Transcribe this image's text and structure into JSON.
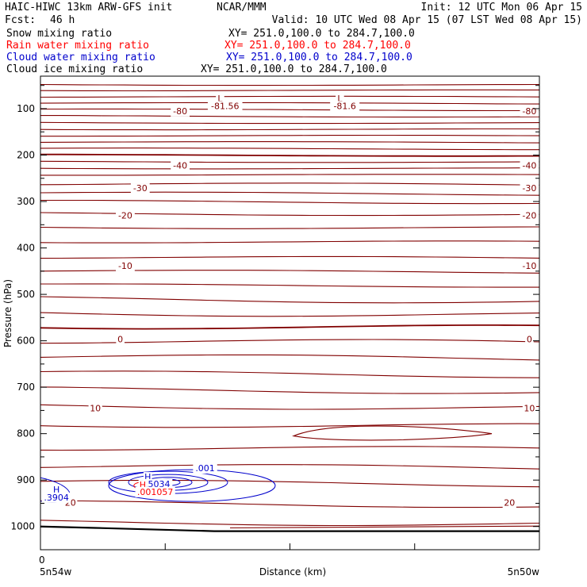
{
  "header": {
    "model": "HAIC-HIWC 13km ARW-GFS init",
    "org": "NCAR/MMM",
    "init": "Init: 12 UTC Mon 06 Apr 15",
    "fcst_label": "Fcst:",
    "fcst_value": "46 h",
    "valid": "Valid: 10 UTC Wed 08 Apr 15 (07 LST Wed 08 Apr 15)"
  },
  "fields": [
    {
      "name": "Snow mixing ratio",
      "xy": "XY= 251.0,100.0 to 284.7,100.0",
      "color": "#000000"
    },
    {
      "name": "Rain water mixing ratio",
      "xy": "XY= 251.0,100.0 to 284.7,100.0",
      "color": "#ff0000"
    },
    {
      "name": "Cloud water mixing ratio",
      "xy": "XY= 251.0,100.0 to 284.7,100.0",
      "color": "#0000cc"
    },
    {
      "name": "Cloud ice mixing ratio",
      "xy": "XY= 251.0,100.0 to 284.7,100.0",
      "color": "#000000"
    }
  ],
  "chart_data": {
    "type": "line",
    "xlabel": "Distance (km)",
    "ylabel": "Pressure (hPa)",
    "x_left_label": "5n54w",
    "x_right_label": "5n50w",
    "x_tick_zero": "0",
    "ylim": [
      1050,
      30
    ],
    "yticks": [
      100,
      200,
      300,
      400,
      500,
      600,
      700,
      800,
      900,
      1000
    ],
    "ytick_labels": [
      "100",
      "200",
      "300",
      "400",
      "500",
      "600",
      "700",
      "800",
      "900",
      "1000"
    ],
    "x_frac_ticks": [
      0,
      0.25,
      0.5,
      0.75,
      1.0
    ],
    "temp_contour_color": "#800000",
    "temp_isolines_p": [
      48,
      60,
      74,
      88,
      102,
      116,
      130,
      144,
      158,
      172,
      186,
      200,
      214,
      228,
      242,
      262,
      282,
      300,
      326,
      355,
      386,
      420,
      450,
      480,
      510,
      540,
      568,
      600,
      634,
      670,
      705,
      740,
      780,
      830,
      870,
      905,
      950,
      990
    ],
    "temp_labels": [
      {
        "text": "-80",
        "p": 105,
        "xf": 0.28
      },
      {
        "text": "-80",
        "p": 105,
        "xf": 0.98
      },
      {
        "text": "-40",
        "p": 222,
        "xf": 0.28
      },
      {
        "text": "-40",
        "p": 222,
        "xf": 0.98
      },
      {
        "text": "-30",
        "p": 271,
        "xf": 0.2
      },
      {
        "text": "-30",
        "p": 271,
        "xf": 0.98
      },
      {
        "text": "-20",
        "p": 330,
        "xf": 0.17
      },
      {
        "text": "-20",
        "p": 330,
        "xf": 0.98
      },
      {
        "text": "-10",
        "p": 438,
        "xf": 0.17
      },
      {
        "text": "-10",
        "p": 438,
        "xf": 0.98
      },
      {
        "text": "0",
        "p": 596,
        "xf": 0.16
      },
      {
        "text": "0",
        "p": 596,
        "xf": 0.98
      },
      {
        "text": "10",
        "p": 745,
        "xf": 0.11
      },
      {
        "text": "10",
        "p": 745,
        "xf": 0.98
      },
      {
        "text": "20",
        "p": 948,
        "xf": 0.06
      },
      {
        "text": "20",
        "p": 948,
        "xf": 0.94
      }
    ],
    "lows": [
      {
        "text": "L",
        "p": 78,
        "xf": 0.36,
        "value": "-81.56"
      },
      {
        "text": "L",
        "p": 78,
        "xf": 0.6,
        "value": "-81.6"
      }
    ],
    "cloud_water": {
      "color": "#0000cc",
      "labels": [
        {
          "text": "H",
          "p": 893,
          "xf": 0.215
        },
        {
          "text": ".5034",
          "p": 908,
          "xf": 0.235
        },
        {
          "text": ".001",
          "p": 874,
          "xf": 0.33
        },
        {
          "text": "H",
          "p": 920,
          "xf": 0.032
        },
        {
          "text": ".3904",
          "p": 937,
          "xf": 0.032
        }
      ]
    },
    "rain_water": {
      "color": "#ff0000",
      "labels": [
        {
          "text": "H",
          "p": 910,
          "xf": 0.205
        },
        {
          "text": ".001057",
          "p": 925,
          "xf": 0.23
        }
      ]
    }
  }
}
